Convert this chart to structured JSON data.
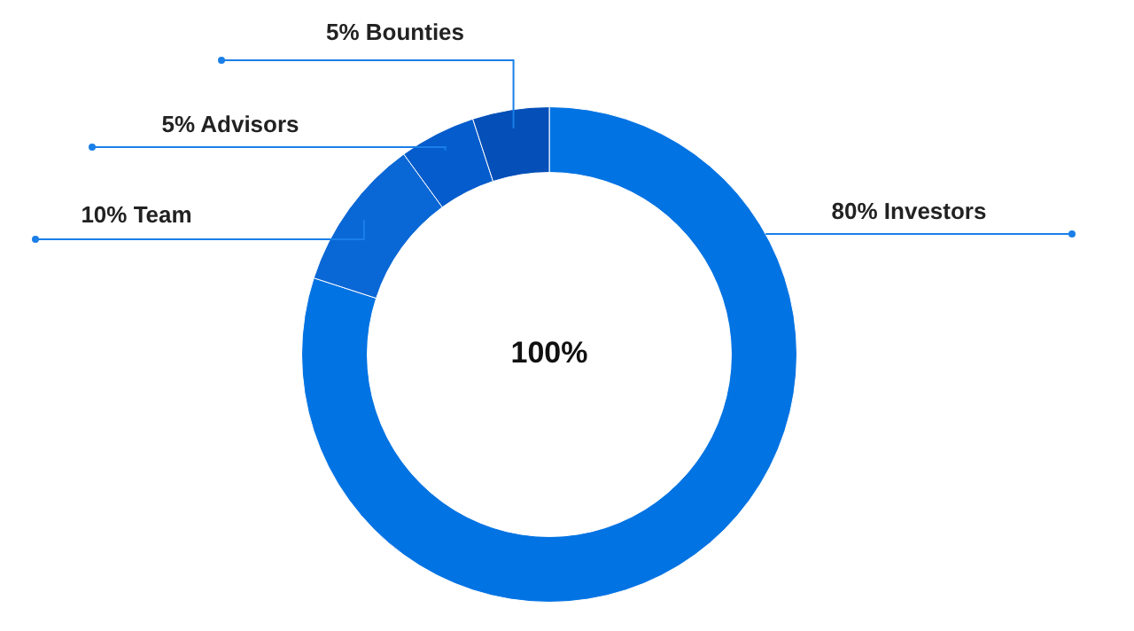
{
  "chart_data": {
    "type": "donut",
    "categories": [
      "Investors",
      "Team",
      "Advisors",
      "Bounties"
    ],
    "values": [
      80,
      10,
      5,
      5
    ],
    "value_labels": [
      "80%",
      "10%",
      "5%",
      "5%"
    ],
    "colors": [
      "#0273e3",
      "#0a67d6",
      "#055ccc",
      "#044fb8"
    ],
    "legend": false,
    "annotations": [
      "100%"
    ]
  }
}
